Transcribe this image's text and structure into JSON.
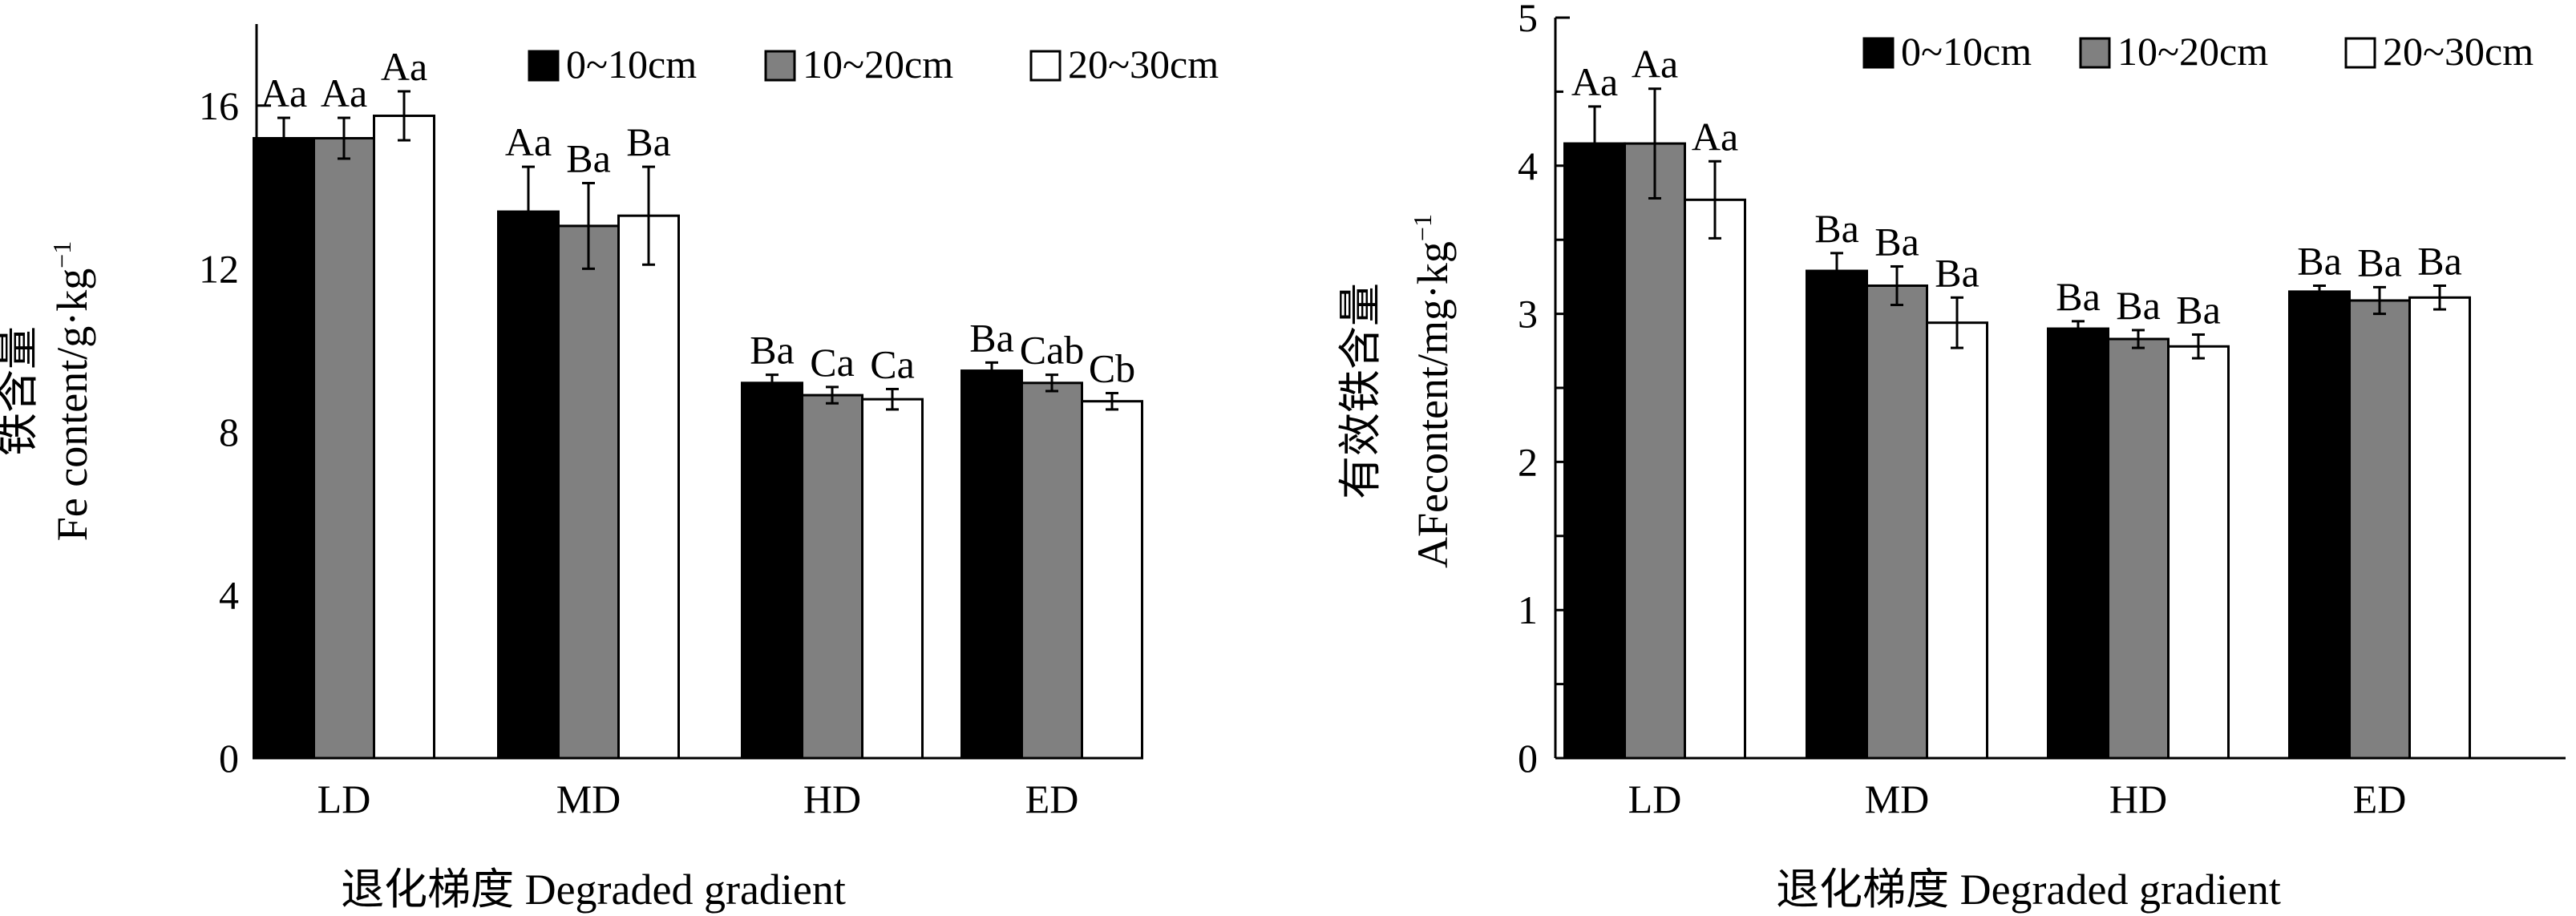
{
  "chart_data": [
    {
      "type": "bar",
      "title": "",
      "xlabel": "退化梯度 Degraded gradient",
      "ylabel_cn": "铁含量",
      "ylabel_en": "Fe content/g·kg",
      "ylabel_sup": "−1",
      "ylim": [
        0,
        18
      ],
      "yticks": [
        "0",
        "4",
        "8",
        "12",
        "16"
      ],
      "categories": [
        "LD",
        "MD",
        "HD",
        "ED"
      ],
      "legend_position": "top-right",
      "colors": [
        "#000000",
        "#808080",
        "#ffffff"
      ],
      "series": [
        {
          "name": "0~10cm",
          "values": [
            15.2,
            13.4,
            9.2,
            9.5
          ],
          "errors": [
            0.5,
            1.1,
            0.2,
            0.2
          ],
          "labels": [
            "Aa",
            "Aa",
            "Ba",
            "Ba"
          ]
        },
        {
          "name": "10~20cm",
          "values": [
            15.2,
            13.05,
            8.9,
            9.2
          ],
          "errors": [
            0.5,
            1.05,
            0.2,
            0.2
          ],
          "labels": [
            "Aa",
            "Ba",
            "Ca",
            "Cab"
          ]
        },
        {
          "name": "20~30cm",
          "values": [
            15.75,
            13.3,
            8.8,
            8.75
          ],
          "errors": [
            0.6,
            1.2,
            0.25,
            0.2
          ],
          "labels": [
            "Aa",
            "Ba",
            "Ca",
            "Cb"
          ]
        }
      ]
    },
    {
      "type": "bar",
      "title": "",
      "xlabel": "退化梯度 Degraded gradient",
      "ylabel_cn": "有效铁含量",
      "ylabel_en": "AFecontent/mg·kg",
      "ylabel_sup": "−1",
      "ylim": [
        0,
        5
      ],
      "yticks": [
        "0",
        "1",
        "2",
        "3",
        "4",
        "5"
      ],
      "categories": [
        "LD",
        "MD",
        "HD",
        "ED"
      ],
      "legend_position": "top-right",
      "colors": [
        "#000000",
        "#808080",
        "#ffffff"
      ],
      "series": [
        {
          "name": "0~10cm",
          "values": [
            4.15,
            3.29,
            2.9,
            3.15
          ],
          "errors": [
            0.25,
            0.12,
            0.05,
            0.04
          ],
          "labels": [
            "Aa",
            "Ba",
            "Ba",
            "Ba"
          ]
        },
        {
          "name": "10~20cm",
          "values": [
            4.15,
            3.19,
            2.83,
            3.09
          ],
          "errors": [
            0.37,
            0.13,
            0.06,
            0.09
          ],
          "labels": [
            "Aa",
            "Ba",
            "Ba",
            "Ba"
          ]
        },
        {
          "name": "20~30cm",
          "values": [
            3.77,
            2.94,
            2.78,
            3.11
          ],
          "errors": [
            0.26,
            0.17,
            0.08,
            0.08
          ],
          "labels": [
            "Aa",
            "Ba",
            "Ba",
            "Ba"
          ]
        }
      ]
    }
  ]
}
